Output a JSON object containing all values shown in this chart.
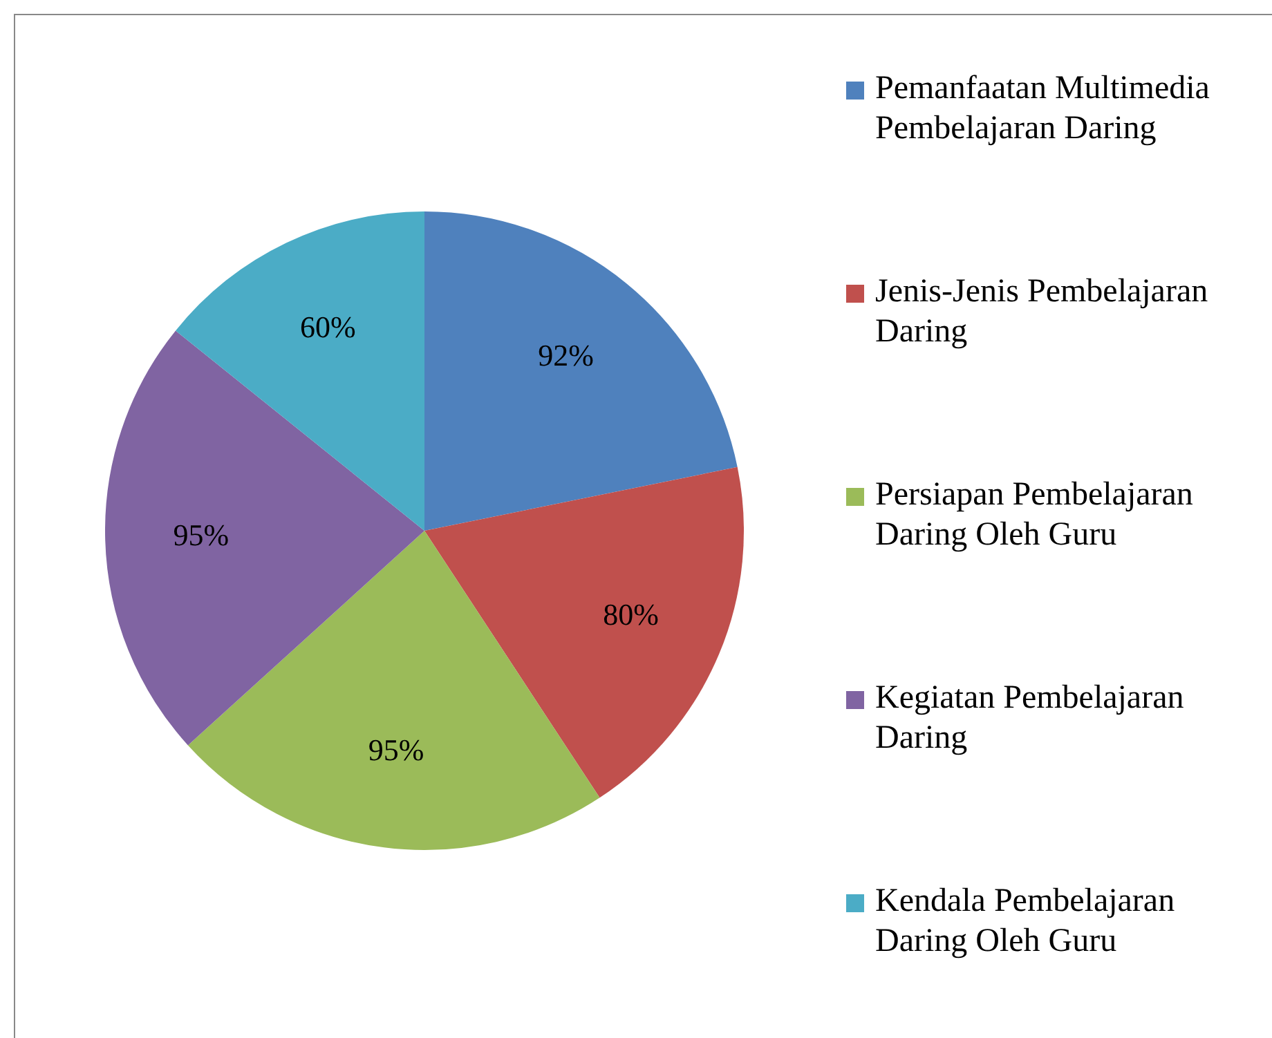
{
  "chart_data": {
    "type": "pie",
    "categories": [
      "Pemanfaatan Multimedia Pembelajaran Daring",
      "Jenis-Jenis Pembelajaran Daring",
      "Persiapan Pembelajaran Daring Oleh Guru",
      "Kegiatan Pembelajaran Daring",
      "Kendala Pembelajaran Daring Oleh Guru"
    ],
    "values": [
      92,
      80,
      95,
      95,
      60
    ],
    "value_labels": [
      "92%",
      "80%",
      "95%",
      "95%",
      "60%"
    ],
    "colors": [
      "#4f81bd",
      "#c0504d",
      "#9bbb59",
      "#8064a2",
      "#4bacc6"
    ],
    "legend": "right"
  }
}
